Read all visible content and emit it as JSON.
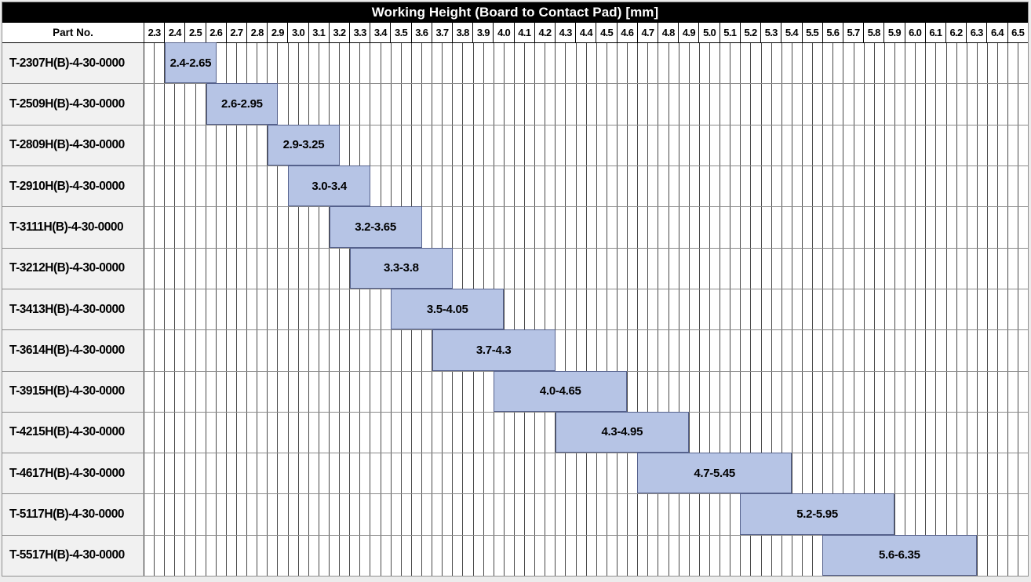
{
  "page": {
    "background": "#ececec"
  },
  "chart_data": {
    "type": "bar",
    "subtype": "horizontal_range_bars_gantt",
    "title": "Working Height (Board to Contact Pad) [mm]",
    "part_no_header": "Part No.",
    "x_axis": {
      "min": 2.3,
      "max": 6.6,
      "tick_step": 0.1,
      "grid_step": 0.05,
      "grid_on": true,
      "tick_labels": [
        "2.3",
        "2.4",
        "2.5",
        "2.6",
        "2.7",
        "2.8",
        "2.9",
        "3.0",
        "3.1",
        "3.2",
        "3.3",
        "3.4",
        "3.5",
        "3.6",
        "3.7",
        "3.8",
        "3.9",
        "4.0",
        "4.1",
        "4.2",
        "4.3",
        "4.4",
        "4.5",
        "4.6",
        "4.7",
        "4.8",
        "4.9",
        "5.0",
        "5.1",
        "5.2",
        "5.3",
        "5.4",
        "5.5",
        "5.6",
        "5.7",
        "5.8",
        "5.9",
        "6.0",
        "6.1",
        "6.2",
        "6.3",
        "6.4",
        "6.5"
      ]
    },
    "rows": [
      {
        "part_no": "T-2307H(B)-4-30-0000",
        "start": 2.4,
        "end": 2.65,
        "range_label": "2.4-2.65"
      },
      {
        "part_no": "T-2509H(B)-4-30-0000",
        "start": 2.6,
        "end": 2.95,
        "range_label": "2.6-2.95"
      },
      {
        "part_no": "T-2809H(B)-4-30-0000",
        "start": 2.9,
        "end": 3.25,
        "range_label": "2.9-3.25"
      },
      {
        "part_no": "T-2910H(B)-4-30-0000",
        "start": 3.0,
        "end": 3.4,
        "range_label": "3.0-3.4"
      },
      {
        "part_no": "T-3111H(B)-4-30-0000",
        "start": 3.2,
        "end": 3.65,
        "range_label": "3.2-3.65"
      },
      {
        "part_no": "T-3212H(B)-4-30-0000",
        "start": 3.3,
        "end": 3.8,
        "range_label": "3.3-3.8"
      },
      {
        "part_no": "T-3413H(B)-4-30-0000",
        "start": 3.5,
        "end": 4.05,
        "range_label": "3.5-4.05"
      },
      {
        "part_no": "T-3614H(B)-4-30-0000",
        "start": 3.7,
        "end": 4.3,
        "range_label": "3.7-4.3"
      },
      {
        "part_no": "T-3915H(B)-4-30-0000",
        "start": 4.0,
        "end": 4.65,
        "range_label": "4.0-4.65"
      },
      {
        "part_no": "T-4215H(B)-4-30-0000",
        "start": 4.3,
        "end": 4.95,
        "range_label": "4.3-4.95"
      },
      {
        "part_no": "T-4617H(B)-4-30-0000",
        "start": 4.7,
        "end": 5.45,
        "range_label": "4.7-5.45"
      },
      {
        "part_no": "T-5117H(B)-4-30-0000",
        "start": 5.2,
        "end": 5.95,
        "range_label": "5.2-5.95"
      },
      {
        "part_no": "T-5517H(B)-4-30-0000",
        "start": 5.6,
        "end": 6.35,
        "range_label": "5.6-6.35"
      }
    ]
  },
  "colors": {
    "bar_fill": "#b6c4e5",
    "bar_border": "#55618c",
    "title_bg": "#000000",
    "title_text": "#ffffff",
    "part_cell_bg": "#f1f1f1",
    "grid_line": "#4a4a4a",
    "row_divider": "#8a8a8a",
    "header_border": "#000000"
  }
}
